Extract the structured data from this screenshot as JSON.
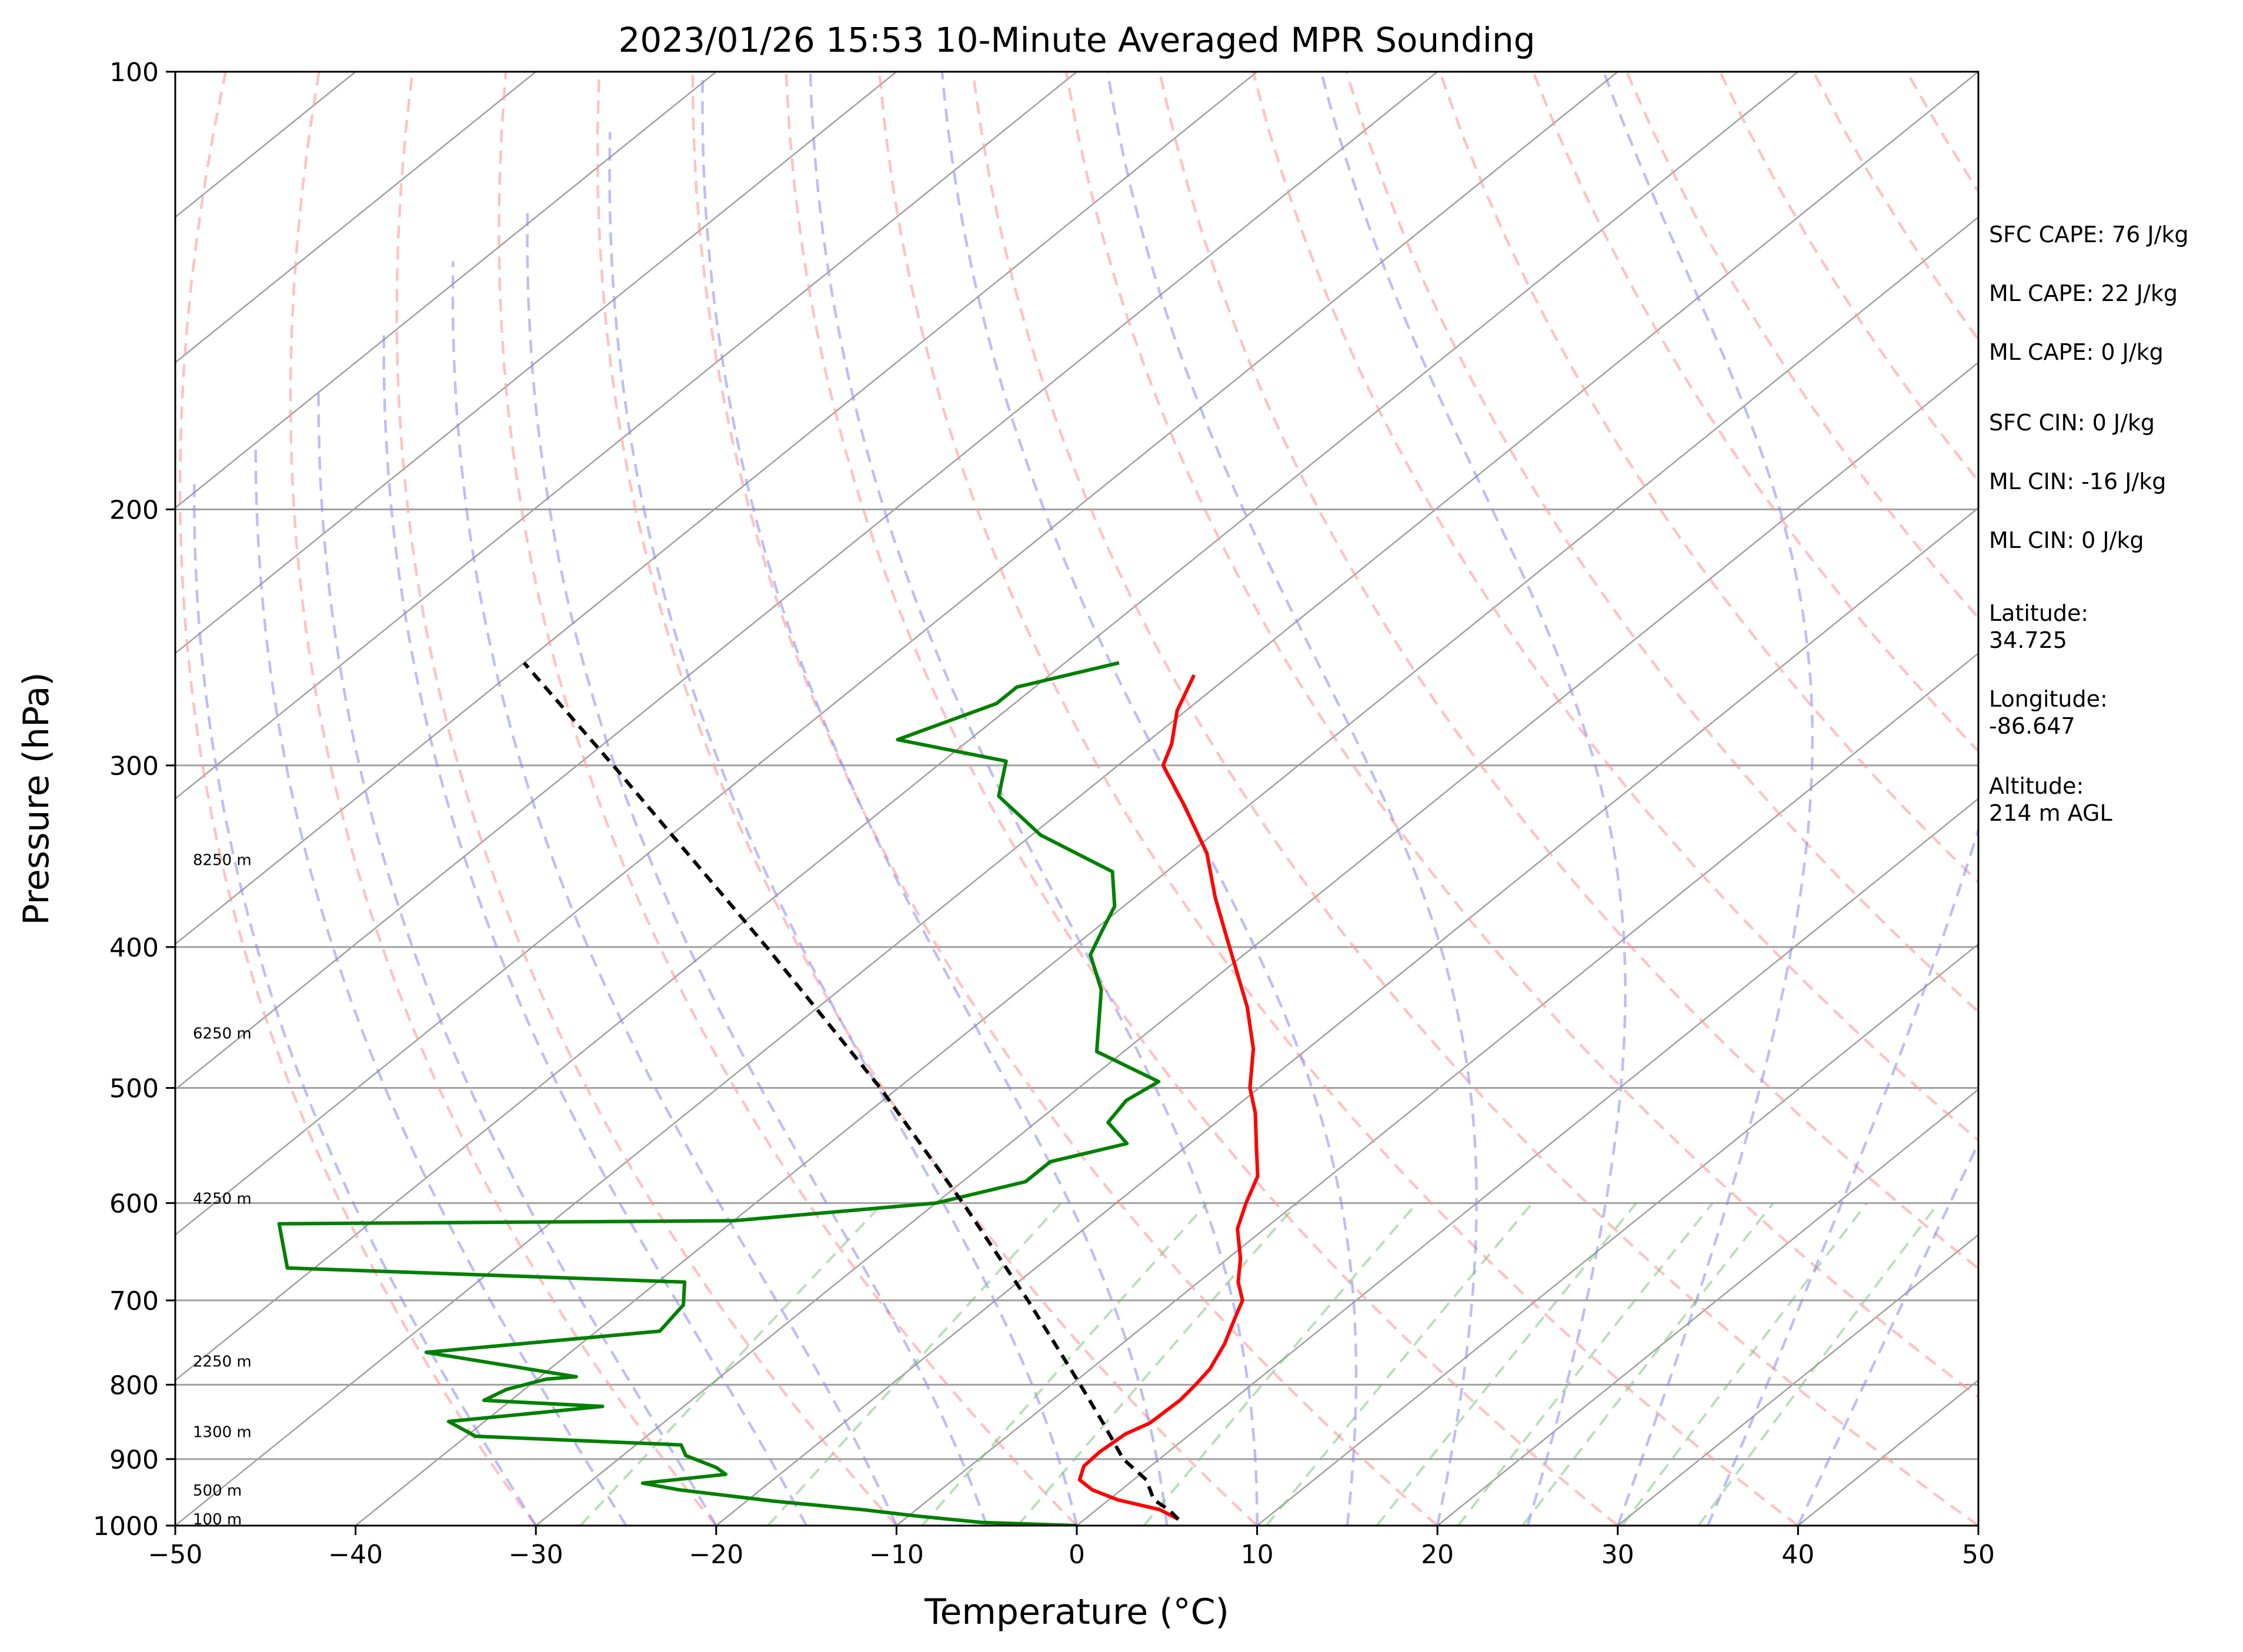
{
  "chart_data": {
    "type": "line",
    "diagram": "skew-T log-P",
    "title": "2023/01/26 15:53 10-Minute Averaged MPR Sounding",
    "xlabel": "Temperature (°C)",
    "ylabel": "Pressure (hPa)",
    "xlim": [
      -50,
      50
    ],
    "ylim": [
      1000,
      100
    ],
    "y_scale": "log",
    "x_ticks": [
      "−50",
      "−40",
      "−30",
      "−20",
      "−10",
      "0",
      "10",
      "20",
      "30",
      "40",
      "50"
    ],
    "x_tick_values": [
      -50,
      -40,
      -30,
      -20,
      -10,
      0,
      10,
      20,
      30,
      40,
      50
    ],
    "y_ticks": [
      "1000",
      "900",
      "800",
      "700",
      "600",
      "500",
      "400",
      "300",
      "200",
      "100"
    ],
    "y_tick_values": [
      1000,
      900,
      800,
      700,
      600,
      500,
      400,
      300,
      200,
      100
    ],
    "grid": true,
    "skew_note": "isotherms skewed; temperature read at bottom axis",
    "series": [
      {
        "role": "temperature",
        "color": "#ff0000",
        "points": [
          [
            990,
            5.2
          ],
          [
            975,
            3.5
          ],
          [
            960,
            0.5
          ],
          [
            945,
            -1.6
          ],
          [
            930,
            -3.0
          ],
          [
            910,
            -3.7
          ],
          [
            890,
            -3.8
          ],
          [
            865,
            -3.6
          ],
          [
            850,
            -3.0
          ],
          [
            820,
            -2.9
          ],
          [
            800,
            -3.1
          ],
          [
            780,
            -3.4
          ],
          [
            750,
            -4.3
          ],
          [
            720,
            -5.5
          ],
          [
            700,
            -6.3
          ],
          [
            680,
            -7.8
          ],
          [
            655,
            -9.3
          ],
          [
            625,
            -11.5
          ],
          [
            600,
            -12.8
          ],
          [
            575,
            -14.0
          ],
          [
            550,
            -16.0
          ],
          [
            520,
            -18.5
          ],
          [
            500,
            -20.5
          ],
          [
            470,
            -23.0
          ],
          [
            440,
            -26.2
          ],
          [
            420,
            -28.7
          ],
          [
            395,
            -32.0
          ],
          [
            370,
            -35.5
          ],
          [
            345,
            -39.0
          ],
          [
            320,
            -43.5
          ],
          [
            300,
            -47.5
          ],
          [
            290,
            -48.5
          ],
          [
            275,
            -50.5
          ],
          [
            260,
            -52.0
          ]
        ]
      },
      {
        "role": "dewpoint",
        "color": "#008000",
        "points": [
          [
            1000,
            0.0
          ],
          [
            995,
            -5.5
          ],
          [
            985,
            -9.5
          ],
          [
            975,
            -13.0
          ],
          [
            962,
            -18.5
          ],
          [
            945,
            -24.5
          ],
          [
            935,
            -27.0
          ],
          [
            922,
            -23.0
          ],
          [
            912,
            -24.0
          ],
          [
            895,
            -26.5
          ],
          [
            880,
            -27.5
          ],
          [
            868,
            -39.5
          ],
          [
            848,
            -42.0
          ],
          [
            828,
            -34.5
          ],
          [
            820,
            -41.5
          ],
          [
            806,
            -41.0
          ],
          [
            793,
            -39.5
          ],
          [
            790,
            -38.0
          ],
          [
            760,
            -48.0
          ],
          [
            735,
            -36.5
          ],
          [
            705,
            -37.0
          ],
          [
            680,
            -38.5
          ],
          [
            665,
            -61.5
          ],
          [
            620,
            -65.0
          ],
          [
            617,
            -40.0
          ],
          [
            600,
            -30.0
          ],
          [
            580,
            -26.5
          ],
          [
            562,
            -26.5
          ],
          [
            546,
            -23.5
          ],
          [
            528,
            -26.0
          ],
          [
            510,
            -26.5
          ],
          [
            495,
            -26.0
          ],
          [
            472,
            -31.5
          ],
          [
            455,
            -33.0
          ],
          [
            428,
            -35.5
          ],
          [
            405,
            -38.5
          ],
          [
            390,
            -39.5
          ],
          [
            375,
            -40.5
          ],
          [
            355,
            -43.0
          ],
          [
            335,
            -49.5
          ],
          [
            315,
            -54.5
          ],
          [
            298,
            -56.5
          ],
          [
            288,
            -64.0
          ],
          [
            272,
            -61.0
          ],
          [
            265,
            -61.0
          ],
          [
            255,
            -57.0
          ]
        ]
      },
      {
        "role": "parcel_profile",
        "color": "#000000",
        "style": "dashed",
        "points": [
          [
            990,
            5.2
          ],
          [
            975,
            4.0
          ],
          [
            960,
            2.5
          ],
          [
            930,
            0.7
          ],
          [
            900,
            -2.0
          ],
          [
            850,
            -5.6
          ],
          [
            800,
            -9.5
          ],
          [
            700,
            -18.2
          ],
          [
            600,
            -28.5
          ],
          [
            500,
            -41.0
          ],
          [
            400,
            -57.0
          ],
          [
            300,
            -78.0
          ],
          [
            255,
            -90.0
          ]
        ]
      }
    ],
    "altitude_labels": [
      {
        "label": "100 m",
        "pressure": 989
      },
      {
        "label": "500 m",
        "pressure": 945
      },
      {
        "label": "1300 m",
        "pressure": 861
      },
      {
        "label": "2250 m",
        "pressure": 770
      },
      {
        "label": "4250 m",
        "pressure": 595
      },
      {
        "label": "6250 m",
        "pressure": 458
      },
      {
        "label": "8250 m",
        "pressure": 348
      }
    ],
    "background_lines": {
      "dry_adiabats_color": "#ff9999",
      "moist_adiabats_color": "#8888ee",
      "mixing_ratio_color": "#77bb77",
      "grid_color": "#a0a0a0"
    }
  },
  "side_panel": [
    {
      "text": "SFC CAPE: 76 J/kg"
    },
    {
      "text": "ML CAPE: 22 J/kg"
    },
    {
      "text": "ML CAPE: 0 J/kg"
    },
    {
      "text": "SFC CIN: 0 J/kg"
    },
    {
      "text": "ML CIN: -16 J/kg"
    },
    {
      "text": "ML CIN: 0 J/kg"
    },
    {
      "text": "Latitude:\n34.725"
    },
    {
      "text": "Longitude:\n-86.647"
    },
    {
      "text": "Altitude:\n214 m AGL"
    }
  ]
}
